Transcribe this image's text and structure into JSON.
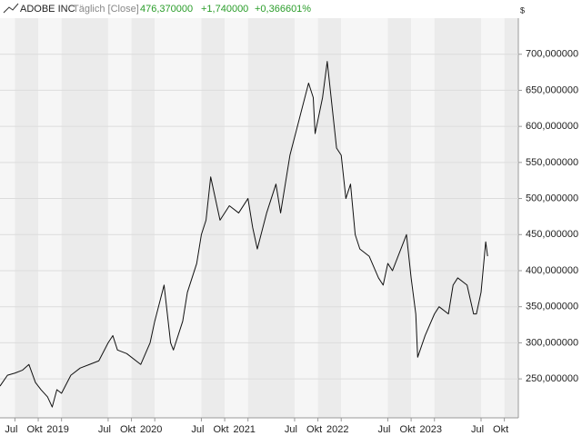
{
  "chart_data": {
    "type": "line",
    "title": "ADOBE INC",
    "subtitle": "Täglich [Close]",
    "last_price": "476,370000",
    "change": "+1,740000",
    "change_percent": "+0,366601%",
    "currency": "$",
    "color": "#111111",
    "x": [
      2018.34,
      2018.42,
      2018.5,
      2018.58,
      2018.65,
      2018.72,
      2018.78,
      2018.85,
      2018.9,
      2018.95,
      2019.0,
      2019.1,
      2019.2,
      2019.3,
      2019.4,
      2019.5,
      2019.55,
      2019.6,
      2019.7,
      2019.85,
      2019.95,
      2020.0,
      2020.1,
      2020.17,
      2020.2,
      2020.3,
      2020.35,
      2020.45,
      2020.5,
      2020.55,
      2020.6,
      2020.7,
      2020.8,
      2020.9,
      2021.0,
      2021.05,
      2021.1,
      2021.2,
      2021.3,
      2021.35,
      2021.45,
      2021.55,
      2021.65,
      2021.7,
      2021.72,
      2021.8,
      2021.85,
      2021.9,
      2021.95,
      2022.0,
      2022.05,
      2022.1,
      2022.15,
      2022.2,
      2022.3,
      2022.4,
      2022.45,
      2022.5,
      2022.55,
      2022.7,
      2022.75,
      2022.8,
      2022.82,
      2022.9,
      2023.0,
      2023.05,
      2023.15,
      2023.2,
      2023.25,
      2023.35,
      2023.42,
      2023.45,
      2023.5,
      2023.55,
      2023.57
    ],
    "values": [
      240,
      255,
      258,
      262,
      270,
      245,
      235,
      225,
      211,
      235,
      230,
      255,
      265,
      270,
      275,
      300,
      310,
      290,
      285,
      270,
      300,
      330,
      380,
      300,
      290,
      330,
      370,
      410,
      450,
      470,
      530,
      470,
      490,
      480,
      500,
      460,
      430,
      480,
      520,
      480,
      560,
      610,
      660,
      640,
      590,
      640,
      690,
      630,
      570,
      560,
      500,
      520,
      450,
      430,
      420,
      390,
      380,
      410,
      400,
      450,
      390,
      340,
      280,
      310,
      340,
      350,
      340,
      380,
      390,
      380,
      340,
      340,
      370,
      440,
      420
    ],
    "xlim": [
      2018.34,
      2023.9
    ],
    "ylim": [
      196,
      750
    ],
    "xticks": [
      {
        "value": 2018.5,
        "label": "Jul"
      },
      {
        "value": 2018.75,
        "label": "Okt"
      },
      {
        "value": 2019,
        "label": "2019"
      },
      {
        "value": 2019.5,
        "label": "Jul"
      },
      {
        "value": 2019.75,
        "label": "Okt"
      },
      {
        "value": 2020,
        "label": "2020"
      },
      {
        "value": 2020.5,
        "label": "Jul"
      },
      {
        "value": 2020.75,
        "label": "Okt"
      },
      {
        "value": 2021,
        "label": "2021"
      },
      {
        "value": 2021.5,
        "label": "Jul"
      },
      {
        "value": 2021.75,
        "label": "Okt"
      },
      {
        "value": 2022,
        "label": "2022"
      },
      {
        "value": 2022.5,
        "label": "Jul"
      },
      {
        "value": 2022.75,
        "label": "Okt"
      },
      {
        "value": 2023,
        "label": "2023"
      },
      {
        "value": 2023.5,
        "label": "Jul"
      },
      {
        "value": 2023.75,
        "label": "Okt"
      }
    ],
    "yticks": [
      {
        "value": 250,
        "label": "250,000000"
      },
      {
        "value": 300,
        "label": "300,000000"
      },
      {
        "value": 350,
        "label": "350,000000"
      },
      {
        "value": 400,
        "label": "400,000000"
      },
      {
        "value": 450,
        "label": "450,000000"
      },
      {
        "value": 500,
        "label": "500,000000"
      },
      {
        "value": 550,
        "label": "550,000000"
      },
      {
        "value": 600,
        "label": "600,000000"
      },
      {
        "value": 650,
        "label": "650,000000"
      },
      {
        "value": 700,
        "label": "700,000000"
      }
    ],
    "grid": true
  }
}
